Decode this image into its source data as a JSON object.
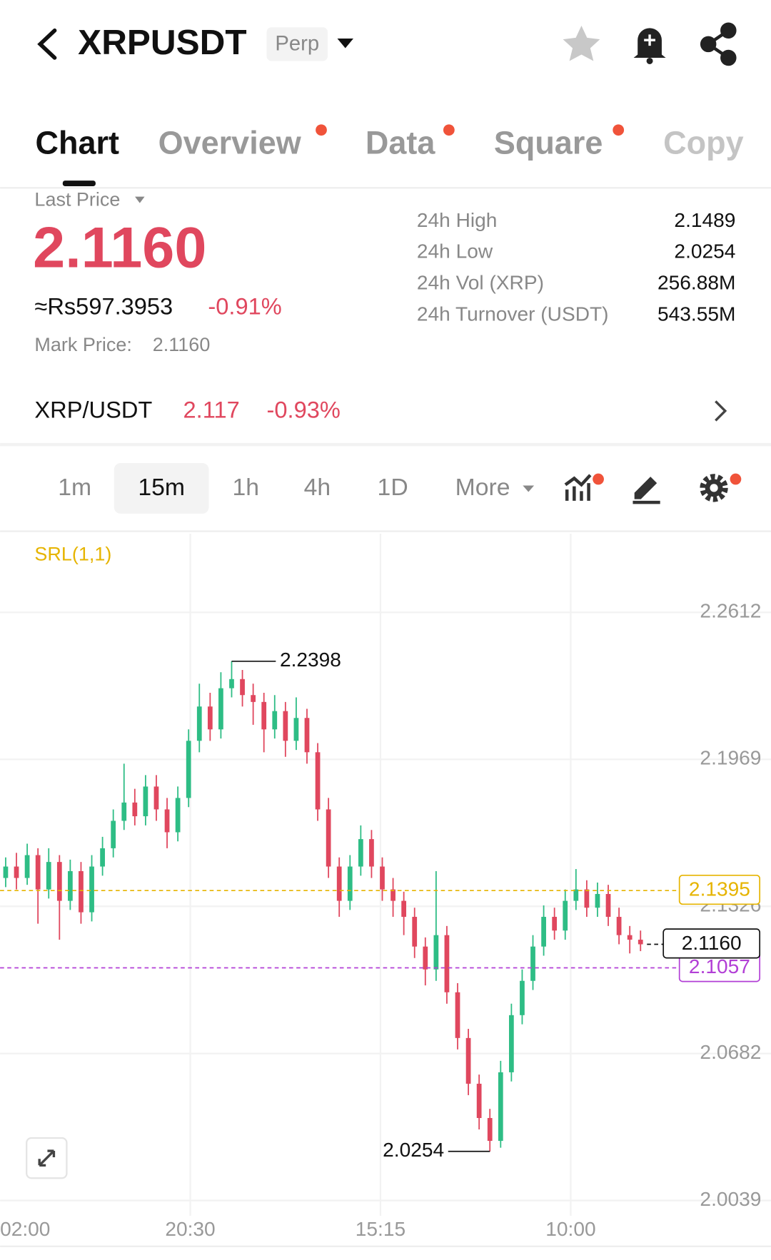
{
  "header": {
    "title": "XRPUSDT",
    "badge": "Perp"
  },
  "tabs": [
    "Chart",
    "Overview",
    "Data",
    "Square",
    "Copy"
  ],
  "last_price": {
    "label": "Last Price",
    "value": "2.1160",
    "approx": "≈Rs597.3953",
    "change": "-0.91%",
    "mark_label": "Mark Price:",
    "mark_value": "2.1160"
  },
  "stats": [
    {
      "label": "24h High",
      "value": "2.1489"
    },
    {
      "label": "24h Low",
      "value": "2.0254"
    },
    {
      "label": "24h Vol (XRP)",
      "value": "256.88M"
    },
    {
      "label": "24h Turnover (USDT)",
      "value": "543.55M"
    }
  ],
  "spot": {
    "pair": "XRP/USDT",
    "price": "2.117",
    "change": "-0.93%"
  },
  "timeframes": [
    "1m",
    "15m",
    "1h",
    "4h",
    "1D",
    "More"
  ],
  "chart_data": {
    "type": "candlestick",
    "indicator": "SRL(1,1)",
    "up_color": "#2ebd85",
    "down_color": "#e0475e",
    "grid": true,
    "ylim": [
      1.9972,
      2.2956
    ],
    "yticks": [
      2.2612,
      2.1969,
      2.1326,
      2.0682,
      2.0039
    ],
    "xticks": [
      "02:00",
      "20:30",
      "15:15",
      "10:00"
    ],
    "high": 2.2398,
    "low": 2.0254,
    "price_lines": [
      {
        "value": 2.1395,
        "color": "#e6b400"
      },
      {
        "value": 2.1057,
        "color": "#b23fd6"
      },
      {
        "value": 2.116,
        "label": "2.1160",
        "color": "#111111"
      }
    ],
    "candles": [
      [
        2.145,
        2.154,
        2.141,
        2.15
      ],
      [
        2.15,
        2.156,
        2.14,
        2.145
      ],
      [
        2.145,
        2.16,
        2.142,
        2.155
      ],
      [
        2.155,
        2.158,
        2.125,
        2.14
      ],
      [
        2.14,
        2.158,
        2.136,
        2.152
      ],
      [
        2.152,
        2.155,
        2.118,
        2.135
      ],
      [
        2.135,
        2.153,
        2.131,
        2.148
      ],
      [
        2.148,
        2.152,
        2.125,
        2.13
      ],
      [
        2.13,
        2.155,
        2.126,
        2.15
      ],
      [
        2.15,
        2.163,
        2.146,
        2.158
      ],
      [
        2.158,
        2.175,
        2.154,
        2.17
      ],
      [
        2.17,
        2.195,
        2.166,
        2.178
      ],
      [
        2.178,
        2.184,
        2.168,
        2.172
      ],
      [
        2.172,
        2.19,
        2.168,
        2.185
      ],
      [
        2.185,
        2.19,
        2.17,
        2.175
      ],
      [
        2.175,
        2.18,
        2.158,
        2.165
      ],
      [
        2.165,
        2.185,
        2.161,
        2.18
      ],
      [
        2.18,
        2.21,
        2.176,
        2.205
      ],
      [
        2.205,
        2.23,
        2.2,
        2.22
      ],
      [
        2.22,
        2.226,
        2.205,
        2.21
      ],
      [
        2.21,
        2.235,
        2.206,
        2.228
      ],
      [
        2.228,
        2.2398,
        2.224,
        2.232
      ],
      [
        2.232,
        2.236,
        2.22,
        2.225
      ],
      [
        2.225,
        2.23,
        2.212,
        2.222
      ],
      [
        2.222,
        2.226,
        2.2,
        2.21
      ],
      [
        2.21,
        2.225,
        2.206,
        2.218
      ],
      [
        2.218,
        2.222,
        2.198,
        2.205
      ],
      [
        2.205,
        2.224,
        2.201,
        2.215
      ],
      [
        2.215,
        2.219,
        2.195,
        2.2
      ],
      [
        2.2,
        2.204,
        2.17,
        2.175
      ],
      [
        2.175,
        2.18,
        2.145,
        2.15
      ],
      [
        2.15,
        2.154,
        2.128,
        2.135
      ],
      [
        2.135,
        2.155,
        2.131,
        2.15
      ],
      [
        2.15,
        2.168,
        2.146,
        2.162
      ],
      [
        2.162,
        2.166,
        2.145,
        2.15
      ],
      [
        2.15,
        2.154,
        2.135,
        2.14
      ],
      [
        2.14,
        2.145,
        2.128,
        2.135
      ],
      [
        2.135,
        2.139,
        2.12,
        2.128
      ],
      [
        2.128,
        2.132,
        2.11,
        2.115
      ],
      [
        2.115,
        2.119,
        2.098,
        2.105
      ],
      [
        2.105,
        2.148,
        2.1,
        2.12
      ],
      [
        2.12,
        2.124,
        2.09,
        2.095
      ],
      [
        2.095,
        2.099,
        2.07,
        2.075
      ],
      [
        2.075,
        2.079,
        2.05,
        2.055
      ],
      [
        2.055,
        2.059,
        2.035,
        2.04
      ],
      [
        2.04,
        2.044,
        2.0254,
        2.03
      ],
      [
        2.03,
        2.065,
        2.027,
        2.06
      ],
      [
        2.06,
        2.09,
        2.056,
        2.085
      ],
      [
        2.085,
        2.105,
        2.081,
        2.1
      ],
      [
        2.1,
        2.12,
        2.096,
        2.115
      ],
      [
        2.115,
        2.133,
        2.111,
        2.128
      ],
      [
        2.128,
        2.132,
        2.118,
        2.122
      ],
      [
        2.122,
        2.14,
        2.118,
        2.135
      ],
      [
        2.135,
        2.1489,
        2.131,
        2.14
      ],
      [
        2.14,
        2.144,
        2.128,
        2.132
      ],
      [
        2.132,
        2.143,
        2.128,
        2.138
      ],
      [
        2.138,
        2.142,
        2.124,
        2.128
      ],
      [
        2.128,
        2.132,
        2.116,
        2.12
      ],
      [
        2.12,
        2.124,
        2.112,
        2.118
      ],
      [
        2.118,
        2.122,
        2.113,
        2.116
      ]
    ]
  }
}
